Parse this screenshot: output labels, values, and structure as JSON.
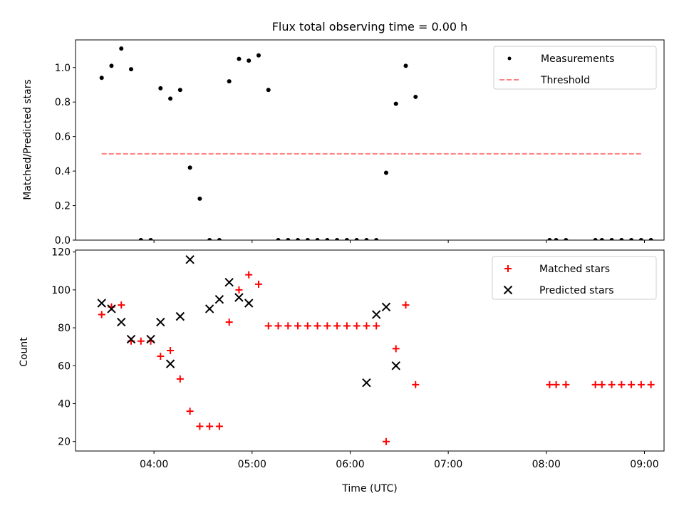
{
  "chart_data": [
    {
      "type": "scatter",
      "title": "Flux total observing time = 0.00 h",
      "xlabel": "",
      "ylabel": "Matched/Predicted stars",
      "ylim": [
        0,
        1.16
      ],
      "yticks": [
        "0.0",
        "0.2",
        "0.4",
        "0.6",
        "0.8",
        "1.0"
      ],
      "xlim": [
        "03:12",
        "09:12"
      ],
      "legend_position": "top-right",
      "series": [
        {
          "name": "Measurements",
          "marker": "dot",
          "color": "#000000",
          "x": [
            "03:28",
            "03:34",
            "03:40",
            "03:46",
            "03:52",
            "03:58",
            "04:04",
            "04:10",
            "04:16",
            "04:22",
            "04:28",
            "04:34",
            "04:40",
            "04:46",
            "04:52",
            "04:58",
            "05:04",
            "05:10",
            "05:16",
            "05:22",
            "05:28",
            "05:34",
            "05:40",
            "05:46",
            "05:52",
            "05:58",
            "06:04",
            "06:10",
            "06:16",
            "06:22",
            "06:28",
            "06:34",
            "06:40",
            "08:02",
            "08:06",
            "08:12",
            "08:30",
            "08:34",
            "08:40",
            "08:46",
            "08:52",
            "08:58",
            "09:04"
          ],
          "y": [
            0.94,
            1.01,
            1.11,
            0.99,
            0.0,
            0.0,
            0.88,
            0.82,
            0.87,
            0.42,
            0.24,
            0.0,
            0.0,
            0.92,
            1.05,
            1.04,
            1.07,
            0.87,
            0.0,
            0.0,
            0.0,
            0.0,
            0.0,
            0.0,
            0.0,
            0.0,
            0.0,
            0.0,
            0.0,
            0.39,
            0.79,
            1.01,
            0.83,
            0.0,
            0.0,
            0.0,
            0.0,
            0.0,
            0.0,
            0.0,
            0.0,
            0.0,
            0.0
          ]
        },
        {
          "name": "Threshold",
          "style": "dashed",
          "color": "#ff7f7f",
          "x": [
            "03:28",
            "08:58"
          ],
          "y": [
            0.5,
            0.5
          ]
        }
      ]
    },
    {
      "type": "scatter",
      "title": "",
      "xlabel": "Time (UTC)",
      "ylabel": "Count",
      "ylim": [
        15,
        121
      ],
      "yticks": [
        "20",
        "40",
        "60",
        "80",
        "100",
        "120"
      ],
      "xlim": [
        "03:12",
        "09:12"
      ],
      "xticks": [
        "04:00",
        "05:00",
        "06:00",
        "07:00",
        "08:00",
        "09:00"
      ],
      "legend_position": "top-right",
      "series": [
        {
          "name": "Matched stars",
          "marker": "plus",
          "color": "#ff0000",
          "x": [
            "03:28",
            "03:34",
            "03:40",
            "03:46",
            "03:52",
            "03:58",
            "04:04",
            "04:10",
            "04:16",
            "04:22",
            "04:28",
            "04:34",
            "04:40",
            "04:46",
            "04:52",
            "04:58",
            "05:04",
            "05:10",
            "05:16",
            "05:22",
            "05:28",
            "05:34",
            "05:40",
            "05:46",
            "05:52",
            "05:58",
            "06:04",
            "06:10",
            "06:16",
            "06:22",
            "06:28",
            "06:34",
            "06:40",
            "08:02",
            "08:06",
            "08:12",
            "08:30",
            "08:34",
            "08:40",
            "08:46",
            "08:52",
            "08:58",
            "09:04"
          ],
          "y": [
            87,
            91,
            92,
            73,
            73,
            73,
            65,
            68,
            53,
            36,
            28,
            28,
            28,
            83,
            100,
            108,
            103,
            81,
            81,
            81,
            81,
            81,
            81,
            81,
            81,
            81,
            81,
            81,
            81,
            20,
            69,
            92,
            50,
            50,
            50,
            50,
            50,
            50,
            50,
            50,
            50,
            50,
            50
          ]
        },
        {
          "name": "Predicted stars",
          "marker": "x",
          "color": "#000000",
          "x": [
            "03:28",
            "03:34",
            "03:40",
            "03:46",
            "03:58",
            "04:04",
            "04:10",
            "04:16",
            "04:22",
            "04:34",
            "04:40",
            "04:46",
            "04:52",
            "04:58",
            "06:10",
            "06:16",
            "06:22",
            "06:28"
          ],
          "y": [
            93,
            90,
            83,
            74,
            74,
            83,
            61,
            86,
            116,
            90,
            95,
            104,
            96,
            93,
            51,
            87,
            91,
            60
          ]
        }
      ]
    }
  ]
}
